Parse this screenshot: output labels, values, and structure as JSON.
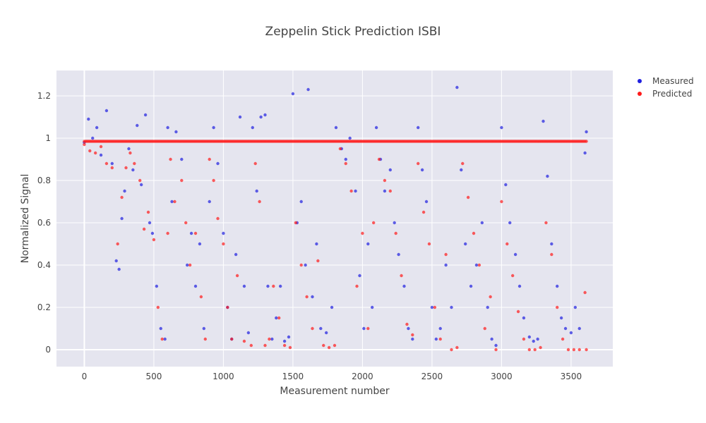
{
  "chart_data": {
    "type": "scatter",
    "title": "Zeppelin Stick Prediction ISBI",
    "xlabel": "Measurement number",
    "ylabel": "Normalized Signal",
    "xlim": [
      -200,
      3800
    ],
    "ylim": [
      -0.08,
      1.32
    ],
    "x_ticks": [
      0,
      500,
      1000,
      1500,
      2000,
      2500,
      3000,
      3500
    ],
    "x_tick_labels": [
      "0",
      "500",
      "1000",
      "1500",
      "2000",
      "2500",
      "3000",
      "3500"
    ],
    "y_ticks": [
      0,
      0.2,
      0.4,
      0.6,
      0.8,
      1,
      1.2
    ],
    "y_tick_labels": [
      "0",
      "0.2",
      "0.4",
      "0.6",
      "0.8",
      "1",
      "1.2"
    ],
    "grid": true,
    "legend_position": "top-right",
    "series": [
      {
        "name": "Measured",
        "color": "#1f1fe0",
        "points": [
          [
            0,
            0.98
          ],
          [
            30,
            1.09
          ],
          [
            60,
            1.0
          ],
          [
            90,
            1.05
          ],
          [
            120,
            0.92
          ],
          [
            160,
            1.13
          ],
          [
            200,
            0.88
          ],
          [
            230,
            0.42
          ],
          [
            250,
            0.38
          ],
          [
            270,
            0.62
          ],
          [
            290,
            0.75
          ],
          [
            320,
            0.95
          ],
          [
            350,
            0.85
          ],
          [
            380,
            1.06
          ],
          [
            410,
            0.78
          ],
          [
            440,
            1.11
          ],
          [
            470,
            0.6
          ],
          [
            490,
            0.55
          ],
          [
            520,
            0.3
          ],
          [
            550,
            0.1
          ],
          [
            580,
            0.05
          ],
          [
            600,
            1.05
          ],
          [
            630,
            0.7
          ],
          [
            660,
            1.03
          ],
          [
            700,
            0.9
          ],
          [
            740,
            0.4
          ],
          [
            770,
            0.55
          ],
          [
            800,
            0.3
          ],
          [
            830,
            0.5
          ],
          [
            860,
            0.1
          ],
          [
            900,
            0.7
          ],
          [
            930,
            1.05
          ],
          [
            960,
            0.88
          ],
          [
            1000,
            0.55
          ],
          [
            1030,
            0.2
          ],
          [
            1060,
            0.05
          ],
          [
            1090,
            0.45
          ],
          [
            1120,
            1.1
          ],
          [
            1150,
            0.3
          ],
          [
            1180,
            0.08
          ],
          [
            1210,
            1.05
          ],
          [
            1240,
            0.75
          ],
          [
            1270,
            1.1
          ],
          [
            1300,
            1.11
          ],
          [
            1320,
            0.3
          ],
          [
            1350,
            0.05
          ],
          [
            1380,
            0.15
          ],
          [
            1410,
            0.3
          ],
          [
            1440,
            0.04
          ],
          [
            1470,
            0.06
          ],
          [
            1500,
            1.21
          ],
          [
            1530,
            0.6
          ],
          [
            1560,
            0.7
          ],
          [
            1590,
            0.4
          ],
          [
            1610,
            1.23
          ],
          [
            1640,
            0.25
          ],
          [
            1670,
            0.5
          ],
          [
            1700,
            0.1
          ],
          [
            1740,
            0.08
          ],
          [
            1780,
            0.2
          ],
          [
            1810,
            1.05
          ],
          [
            1850,
            0.95
          ],
          [
            1880,
            0.9
          ],
          [
            1910,
            1.0
          ],
          [
            1950,
            0.75
          ],
          [
            1980,
            0.35
          ],
          [
            2010,
            0.1
          ],
          [
            2040,
            0.5
          ],
          [
            2070,
            0.2
          ],
          [
            2100,
            1.05
          ],
          [
            2130,
            0.9
          ],
          [
            2160,
            0.75
          ],
          [
            2200,
            0.85
          ],
          [
            2230,
            0.6
          ],
          [
            2260,
            0.45
          ],
          [
            2300,
            0.3
          ],
          [
            2330,
            0.1
          ],
          [
            2360,
            0.05
          ],
          [
            2400,
            1.05
          ],
          [
            2430,
            0.85
          ],
          [
            2460,
            0.7
          ],
          [
            2500,
            0.2
          ],
          [
            2530,
            0.05
          ],
          [
            2560,
            0.1
          ],
          [
            2600,
            0.4
          ],
          [
            2640,
            0.2
          ],
          [
            2680,
            1.24
          ],
          [
            2710,
            0.85
          ],
          [
            2740,
            0.5
          ],
          [
            2780,
            0.3
          ],
          [
            2820,
            0.4
          ],
          [
            2860,
            0.6
          ],
          [
            2900,
            0.2
          ],
          [
            2930,
            0.05
          ],
          [
            2960,
            0.02
          ],
          [
            3000,
            1.05
          ],
          [
            3030,
            0.78
          ],
          [
            3060,
            0.6
          ],
          [
            3100,
            0.45
          ],
          [
            3130,
            0.3
          ],
          [
            3160,
            0.15
          ],
          [
            3200,
            0.06
          ],
          [
            3230,
            0.04
          ],
          [
            3260,
            0.05
          ],
          [
            3300,
            1.08
          ],
          [
            3330,
            0.82
          ],
          [
            3360,
            0.5
          ],
          [
            3400,
            0.3
          ],
          [
            3430,
            0.15
          ],
          [
            3460,
            0.1
          ],
          [
            3500,
            0.08
          ],
          [
            3530,
            0.2
          ],
          [
            3560,
            0.1
          ],
          [
            3600,
            0.93
          ],
          [
            3610,
            1.03
          ]
        ]
      },
      {
        "name": "Predicted",
        "color": "#ff1a1a",
        "points": [
          [
            0,
            0.97
          ],
          [
            40,
            0.94
          ],
          [
            80,
            0.93
          ],
          [
            120,
            0.96
          ],
          [
            160,
            0.88
          ],
          [
            200,
            0.86
          ],
          [
            240,
            0.5
          ],
          [
            270,
            0.72
          ],
          [
            300,
            0.86
          ],
          [
            330,
            0.93
          ],
          [
            360,
            0.88
          ],
          [
            400,
            0.8
          ],
          [
            430,
            0.57
          ],
          [
            460,
            0.65
          ],
          [
            500,
            0.52
          ],
          [
            530,
            0.2
          ],
          [
            560,
            0.05
          ],
          [
            600,
            0.55
          ],
          [
            620,
            0.9
          ],
          [
            650,
            0.7
          ],
          [
            700,
            0.8
          ],
          [
            730,
            0.6
          ],
          [
            760,
            0.4
          ],
          [
            800,
            0.55
          ],
          [
            840,
            0.25
          ],
          [
            870,
            0.05
          ],
          [
            900,
            0.9
          ],
          [
            930,
            0.8
          ],
          [
            960,
            0.62
          ],
          [
            1000,
            0.5
          ],
          [
            1030,
            0.2
          ],
          [
            1060,
            0.05
          ],
          [
            1100,
            0.35
          ],
          [
            1150,
            0.04
          ],
          [
            1200,
            0.02
          ],
          [
            1230,
            0.88
          ],
          [
            1260,
            0.7
          ],
          [
            1300,
            0.02
          ],
          [
            1330,
            0.05
          ],
          [
            1360,
            0.3
          ],
          [
            1400,
            0.15
          ],
          [
            1440,
            0.02
          ],
          [
            1480,
            0.01
          ],
          [
            1520,
            0.6
          ],
          [
            1560,
            0.4
          ],
          [
            1600,
            0.25
          ],
          [
            1640,
            0.1
          ],
          [
            1680,
            0.42
          ],
          [
            1720,
            0.02
          ],
          [
            1760,
            0.01
          ],
          [
            1800,
            0.02
          ],
          [
            1840,
            0.95
          ],
          [
            1880,
            0.88
          ],
          [
            1920,
            0.75
          ],
          [
            1960,
            0.3
          ],
          [
            2000,
            0.55
          ],
          [
            2040,
            0.1
          ],
          [
            2080,
            0.6
          ],
          [
            2120,
            0.9
          ],
          [
            2160,
            0.8
          ],
          [
            2200,
            0.75
          ],
          [
            2240,
            0.55
          ],
          [
            2280,
            0.35
          ],
          [
            2320,
            0.12
          ],
          [
            2360,
            0.07
          ],
          [
            2400,
            0.88
          ],
          [
            2440,
            0.65
          ],
          [
            2480,
            0.5
          ],
          [
            2520,
            0.2
          ],
          [
            2560,
            0.05
          ],
          [
            2600,
            0.45
          ],
          [
            2640,
            0.0
          ],
          [
            2680,
            0.01
          ],
          [
            2720,
            0.88
          ],
          [
            2760,
            0.72
          ],
          [
            2800,
            0.55
          ],
          [
            2840,
            0.4
          ],
          [
            2880,
            0.1
          ],
          [
            2920,
            0.25
          ],
          [
            2960,
            0.0
          ],
          [
            3000,
            0.7
          ],
          [
            3040,
            0.5
          ],
          [
            3080,
            0.35
          ],
          [
            3120,
            0.18
          ],
          [
            3160,
            0.05
          ],
          [
            3200,
            0.0
          ],
          [
            3240,
            0.0
          ],
          [
            3280,
            0.01
          ],
          [
            3320,
            0.6
          ],
          [
            3360,
            0.45
          ],
          [
            3400,
            0.2
          ],
          [
            3440,
            0.05
          ],
          [
            3480,
            0.0
          ],
          [
            3520,
            0.0
          ],
          [
            3560,
            0.0
          ],
          [
            3600,
            0.27
          ],
          [
            3610,
            0.0
          ]
        ]
      },
      {
        "name": "Predicted-baseline",
        "color": "#ff1a1a",
        "x_range": [
          0,
          3610
        ],
        "y": 0.985
      }
    ]
  }
}
